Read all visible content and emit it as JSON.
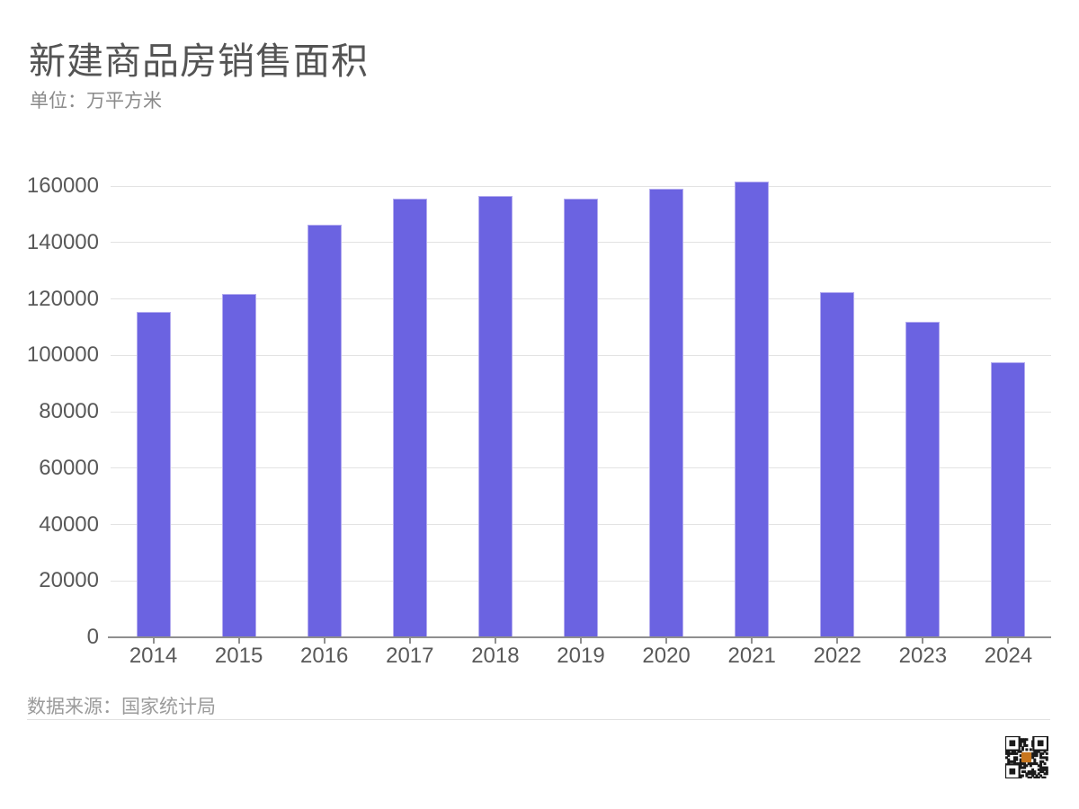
{
  "header": {
    "title": "新建商品房销售面积",
    "subtitle": "单位：万平方米"
  },
  "footer": {
    "source": "数据来源：国家统计局"
  },
  "colors": {
    "bar_fill": "#6b63e1",
    "bar_border": "#b3abef",
    "title_text": "#545454",
    "subtitle_text": "#8a8a8a",
    "axis_text": "#595959",
    "gridline": "#e3e3e3",
    "axis_line": "#8f8f8f",
    "footer_text": "#9b9b9b",
    "qr_logo": "#c8761e"
  },
  "chart_data": {
    "type": "bar",
    "title": "新建商品房销售面积",
    "subtitle": "单位：万平方米",
    "source": "数据来源：国家统计局",
    "categories": [
      "2014",
      "2015",
      "2016",
      "2017",
      "2018",
      "2019",
      "2020",
      "2021",
      "2022",
      "2023",
      "2024"
    ],
    "values": [
      115400,
      121600,
      146200,
      155600,
      156400,
      155600,
      159200,
      161500,
      122300,
      112000,
      97400
    ],
    "xlabel": "",
    "ylabel": "万平方米",
    "ylim": [
      0,
      160000
    ],
    "ytick_interval": 20000,
    "yticks": [
      0,
      20000,
      40000,
      60000,
      80000,
      100000,
      120000,
      140000,
      160000
    ],
    "grid": true,
    "legend_position": "none",
    "bar_color": "#6b63e1"
  }
}
